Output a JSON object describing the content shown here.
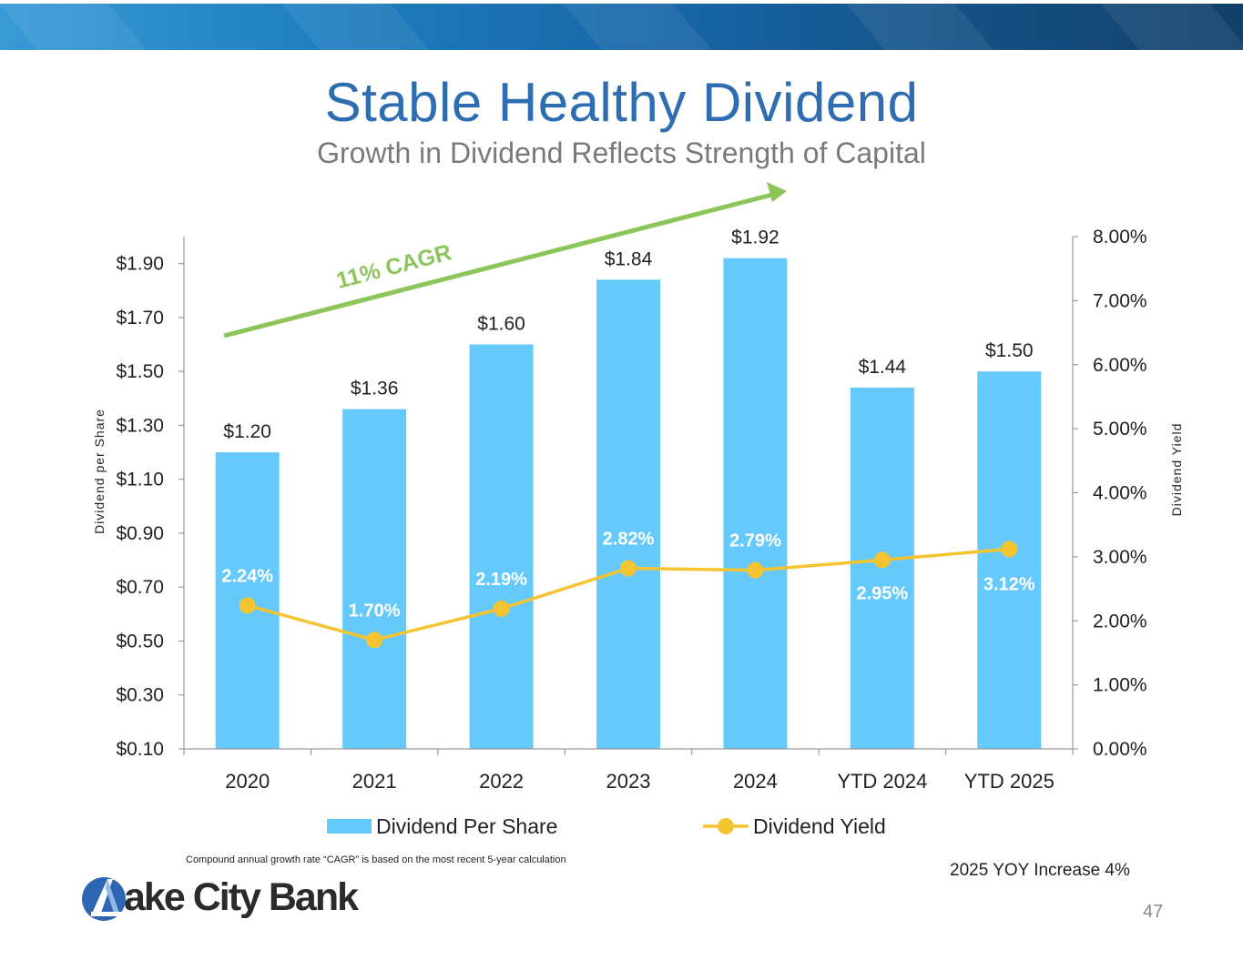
{
  "header": {
    "title": "Stable Healthy Dividend",
    "subtitle": "Growth in Dividend Reflects Strength of Capital"
  },
  "annotation": {
    "cagr_label": "11% CAGR"
  },
  "colors": {
    "bar": "#66c9fc",
    "line": "#f5c431",
    "cagr_arrow": "#8cc65a",
    "title": "#2e6db1"
  },
  "chart_data": {
    "type": "bar",
    "categories": [
      "2020",
      "2021",
      "2022",
      "2023",
      "2024",
      "YTD 2024",
      "YTD 2025"
    ],
    "series": [
      {
        "name": "Dividend Per Share",
        "type": "bar",
        "axis": "left",
        "values": [
          1.2,
          1.36,
          1.6,
          1.84,
          1.92,
          1.44,
          1.5
        ],
        "labels": [
          "$1.20",
          "$1.36",
          "$1.60",
          "$1.84",
          "$1.92",
          "$1.44",
          "$1.50"
        ]
      },
      {
        "name": "Dividend Yield",
        "type": "line",
        "axis": "right",
        "values": [
          2.24,
          1.7,
          2.19,
          2.82,
          2.79,
          2.95,
          3.12
        ],
        "labels": [
          "2.24%",
          "1.70%",
          "2.19%",
          "2.82%",
          "2.79%",
          "2.95%",
          "3.12%"
        ]
      }
    ],
    "y_left": {
      "label": "Dividend per Share",
      "range": [
        0.1,
        2.0
      ],
      "ticks": [
        0.1,
        0.3,
        0.5,
        0.7,
        0.9,
        1.1,
        1.3,
        1.5,
        1.7,
        1.9
      ],
      "tick_labels": [
        "$0.10",
        "$0.30",
        "$0.50",
        "$0.70",
        "$0.90",
        "$1.10",
        "$1.30",
        "$1.50",
        "$1.70",
        "$1.90"
      ]
    },
    "y_right": {
      "label": "Dividend Yield",
      "range": [
        0,
        8
      ],
      "ticks": [
        0,
        1,
        2,
        3,
        4,
        5,
        6,
        7,
        8
      ],
      "tick_labels": [
        "0.00%",
        "1.00%",
        "2.00%",
        "3.00%",
        "4.00%",
        "5.00%",
        "6.00%",
        "7.00%",
        "8.00%"
      ]
    },
    "legend": [
      "Dividend Per Share",
      "Dividend Yield"
    ],
    "legend_position": "bottom",
    "grid": false
  },
  "footer": {
    "footnote": "Compound annual growth rate “CAGR” is based on the most recent 5-year calculation",
    "yoy_note": "2025 YOY Increase 4%",
    "page_number": "47",
    "logo_text": "ake City Bank"
  }
}
